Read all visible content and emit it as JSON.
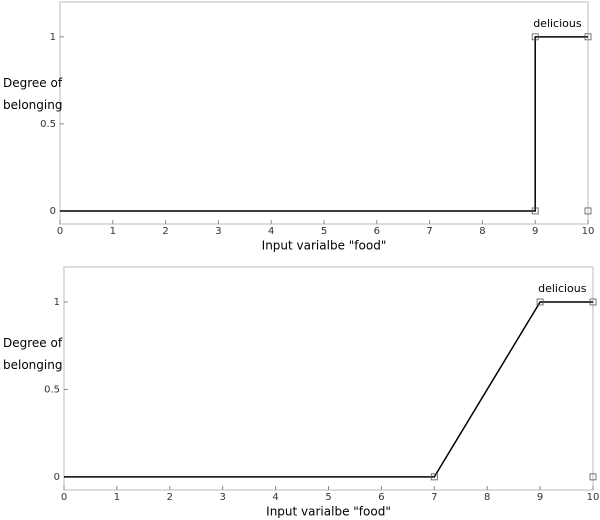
{
  "chart_data": [
    {
      "type": "line",
      "xlabel": "Input varialbe \"food\"",
      "ylabel": "Degree of belonging",
      "annotation": "delicious",
      "xlim": [
        0,
        10
      ],
      "ylim": [
        -0.075,
        1.2
      ],
      "xticks": [
        0,
        1,
        2,
        3,
        4,
        5,
        6,
        7,
        8,
        9,
        10
      ],
      "yticks": [
        0,
        0.5,
        1
      ],
      "series": [
        {
          "color": "#000000",
          "x": [
            0,
            9,
            9,
            10
          ],
          "values": [
            0,
            0,
            1,
            1
          ]
        }
      ],
      "points": {
        "x": [
          9,
          10,
          9,
          10
        ],
        "y": [
          1,
          1,
          0,
          0
        ]
      }
    },
    {
      "type": "line",
      "xlabel": "Input varialbe \"food\"",
      "ylabel": "Degree of belonging",
      "annotation": "delicious",
      "xlim": [
        0,
        10
      ],
      "ylim": [
        -0.075,
        1.2
      ],
      "xticks": [
        0,
        1,
        2,
        3,
        4,
        5,
        6,
        7,
        8,
        9,
        10
      ],
      "yticks": [
        0,
        0.5,
        1
      ],
      "series": [
        {
          "color": "#000000",
          "x": [
            0,
            7,
            9,
            10
          ],
          "values": [
            0,
            0,
            1,
            1
          ]
        }
      ],
      "points": {
        "x": [
          7,
          9,
          10,
          10
        ],
        "y": [
          0,
          1,
          1,
          0
        ]
      }
    }
  ]
}
